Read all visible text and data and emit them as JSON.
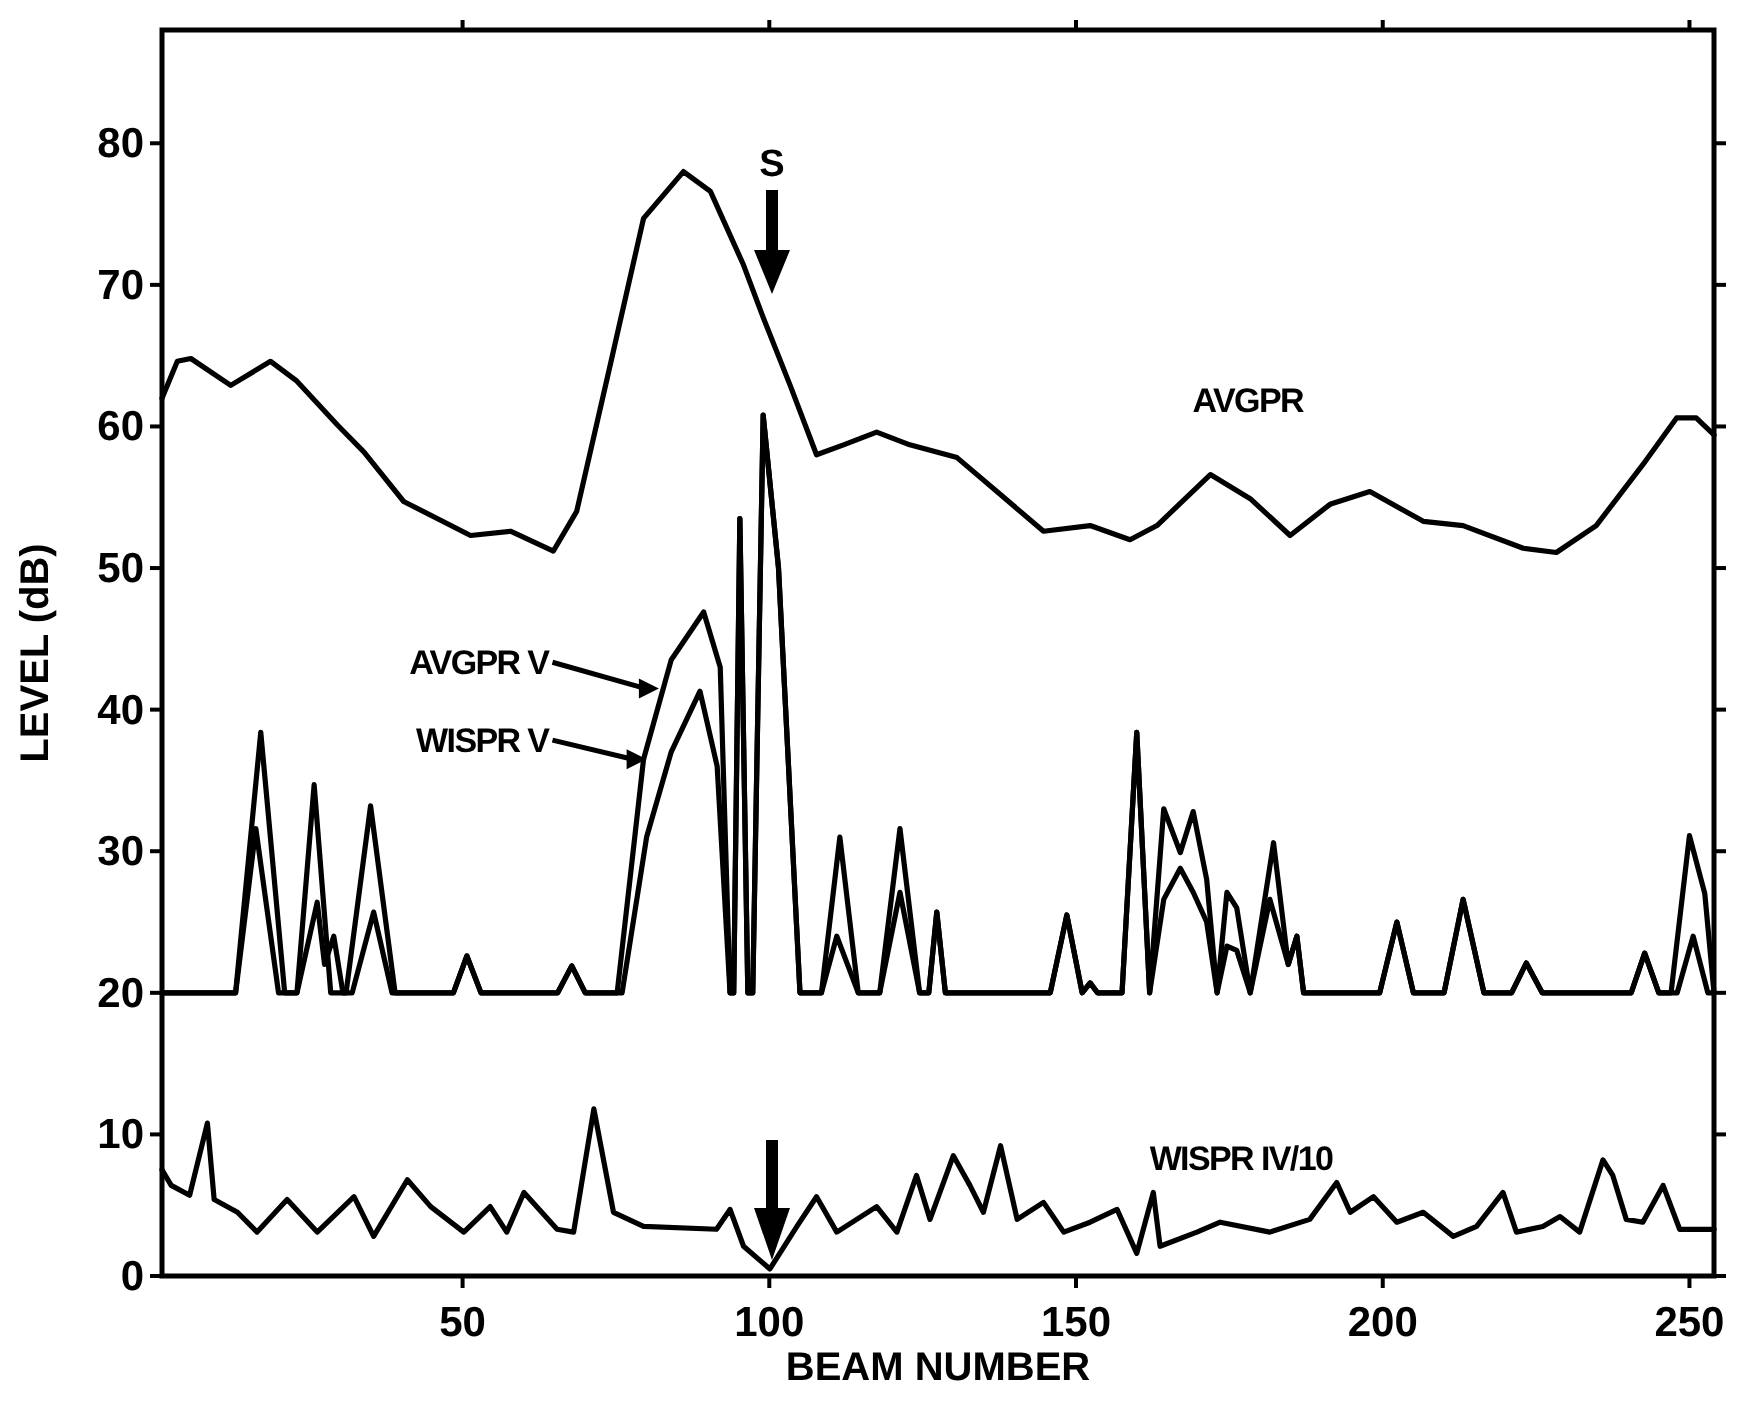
{
  "chart_data": {
    "type": "line",
    "xlabel": "BEAM NUMBER",
    "ylabel": "LEVEL (dB)",
    "xlim": [
      1,
      254
    ],
    "ylim": [
      0,
      88
    ],
    "xticks": [
      50,
      100,
      150,
      200,
      250
    ],
    "yticks": [
      0,
      10,
      20,
      30,
      40,
      50,
      60,
      70,
      80
    ],
    "grid": false,
    "marker": "none",
    "line_style": "solid",
    "legend": "left",
    "annotations": [
      "S"
    ],
    "series": [
      {
        "name": "AVGPR",
        "color": "#000000",
        "x": [
          1,
          3.5,
          5.7,
          12.2,
          18.7,
          23,
          29.6,
          33.9,
          40.4,
          51.3,
          57.8,
          64.8,
          68.6,
          74.1,
          79.5,
          86,
          90.4,
          95.8,
          99,
          103.4,
          107.7,
          112.1,
          117.5,
          122.9,
          130.6,
          137.1,
          144.7,
          152.3,
          158.8,
          163.2,
          171.9,
          178.4,
          184.9,
          191.4,
          197.9,
          206.6,
          213.1,
          222.9,
          228.3,
          234.8,
          242.4,
          247.9,
          251.1,
          254
        ],
        "values": [
          62,
          64.6,
          64.8,
          62.9,
          64.6,
          63.2,
          60.1,
          58.2,
          54.7,
          52.3,
          52.6,
          51.2,
          54,
          64.4,
          74.7,
          78,
          76.6,
          71.4,
          67.7,
          62.9,
          58,
          58.7,
          59.6,
          58.7,
          57.8,
          55.4,
          52.6,
          53,
          52,
          53,
          56.6,
          54.9,
          52.3,
          54.5,
          55.4,
          53.3,
          53,
          51.4,
          51.1,
          53,
          57.3,
          60.6,
          60.6,
          59.4
        ]
      },
      {
        "name": "AVGPR V",
        "color": "#000000",
        "x": [
          1,
          13,
          17.1,
          21,
          23,
          25.8,
          28.5,
          31,
          35,
          39,
          42,
          48.5,
          50.7,
          53,
          65.5,
          67.8,
          70,
          75.2,
          79.5,
          84,
          89.3,
          92,
          93.6,
          94.2,
          95.2,
          96.5,
          97.3,
          99,
          101.5,
          105,
          108.5,
          111.5,
          114.5,
          118,
          121.3,
          124.5,
          126,
          127.3,
          128.7,
          145.8,
          148.5,
          151,
          152.3,
          153.5,
          157.5,
          159.9,
          162,
          164.3,
          167,
          169.1,
          171.3,
          173,
          174.6,
          176.2,
          178.4,
          182.2,
          184.6,
          186,
          187.1,
          199.5,
          202.3,
          205,
          210,
          213.1,
          216.5,
          221,
          223.4,
          226,
          240.5,
          242.7,
          245,
          247,
          250,
          252.5,
          254
        ],
        "values": [
          20,
          20,
          38.4,
          20,
          20,
          34.7,
          20,
          20,
          33.2,
          20,
          20,
          20,
          22.6,
          20,
          20,
          21.9,
          20,
          20,
          36.5,
          43.5,
          46.9,
          43,
          20,
          20,
          53.5,
          20,
          20,
          60.8,
          50,
          20,
          20,
          31,
          20,
          20,
          31.6,
          20,
          20,
          25.7,
          20,
          20,
          25.5,
          20,
          20.7,
          20,
          20,
          38.4,
          20,
          33,
          29.9,
          32.8,
          28,
          20,
          27.1,
          26,
          20,
          30.6,
          22,
          24,
          20,
          20,
          25,
          20,
          20,
          26.6,
          20,
          20,
          22.1,
          20,
          20,
          22.8,
          20,
          20,
          31.1,
          27,
          20
        ]
      },
      {
        "name": "WISPR V",
        "color": "#000000",
        "x": [
          1,
          13,
          16.3,
          20,
          23,
          26.3,
          27.5,
          29,
          30.5,
          32,
          35.5,
          38.5,
          42,
          48.5,
          50.7,
          53,
          65.5,
          67.8,
          70,
          76,
          80,
          84,
          88.7,
          91.5,
          93.6,
          94.2,
          95.2,
          96.5,
          97.3,
          99,
          101.5,
          105,
          108.5,
          111,
          114.5,
          118,
          121.3,
          124.5,
          126,
          127.3,
          128.7,
          145.8,
          148.5,
          151,
          152.3,
          153.5,
          157.5,
          159.9,
          162,
          164.3,
          167,
          169.1,
          171.3,
          173,
          174.6,
          176.2,
          178.4,
          181.6,
          184.6,
          186,
          187.1,
          199.5,
          202.3,
          205,
          210,
          213.1,
          216.5,
          221,
          223.4,
          226,
          240.5,
          242.7,
          245,
          248,
          250.6,
          253,
          254
        ],
        "values": [
          20,
          20,
          31.6,
          20,
          20,
          26.4,
          22,
          24,
          20,
          20,
          25.7,
          20,
          20,
          20,
          22.6,
          20,
          20,
          21.9,
          20,
          20,
          31,
          37,
          41.3,
          36,
          20,
          20,
          53.5,
          20,
          20,
          60.8,
          50,
          20,
          20,
          24,
          20,
          20,
          27.1,
          20,
          20,
          25.7,
          20,
          20,
          25.5,
          20,
          20.7,
          20,
          20,
          38.4,
          20,
          26.6,
          28.8,
          27.1,
          25,
          20,
          23.3,
          23,
          20,
          26.6,
          22,
          24,
          20,
          20,
          25,
          20,
          20,
          26.6,
          20,
          20,
          22.1,
          20,
          20,
          22.8,
          20,
          20,
          24,
          20,
          20
        ]
      },
      {
        "name": "WISPR IV/10",
        "color": "#000000",
        "x": [
          1,
          2.5,
          5.5,
          8.4,
          9.5,
          13.3,
          16.5,
          21.4,
          26.3,
          32.3,
          35.5,
          41,
          44.8,
          50.2,
          54.5,
          57.2,
          60,
          65.4,
          68.1,
          71.4,
          74.6,
          79.5,
          91.4,
          93.6,
          95.8,
          100.1,
          104.5,
          107.7,
          111,
          117.5,
          120.8,
          124,
          126.2,
          130,
          132.7,
          134.9,
          137.7,
          140.4,
          144.7,
          148,
          152.3,
          156.7,
          159.9,
          162.6,
          163.7,
          169.7,
          173.5,
          181.6,
          188.1,
          192.5,
          194.7,
          198.5,
          202.3,
          206.6,
          211.5,
          215.3,
          219.6,
          221.8,
          226.1,
          228.9,
          232.1,
          235.9,
          237.5,
          239.7,
          242.4,
          245.7,
          248.4,
          254
        ],
        "values": [
          7.5,
          6.4,
          5.7,
          10.8,
          5.4,
          4.5,
          3.1,
          5.4,
          3.1,
          5.6,
          2.8,
          6.8,
          4.9,
          3.1,
          4.9,
          3.1,
          5.9,
          3.3,
          3.1,
          11.8,
          4.5,
          3.5,
          3.3,
          4.7,
          2.1,
          0.5,
          3.5,
          5.6,
          3.1,
          4.9,
          3.1,
          7.1,
          4,
          8.5,
          6.4,
          4.5,
          9.2,
          4,
          5.2,
          3.1,
          3.8,
          4.7,
          1.6,
          5.9,
          2.1,
          3.1,
          3.8,
          3.1,
          4,
          6.6,
          4.5,
          5.6,
          3.8,
          4.5,
          2.8,
          3.5,
          5.9,
          3.1,
          3.5,
          4.2,
          3.1,
          8.2,
          7.1,
          4,
          3.8,
          6.4,
          3.3,
          3.3
        ]
      }
    ]
  }
}
